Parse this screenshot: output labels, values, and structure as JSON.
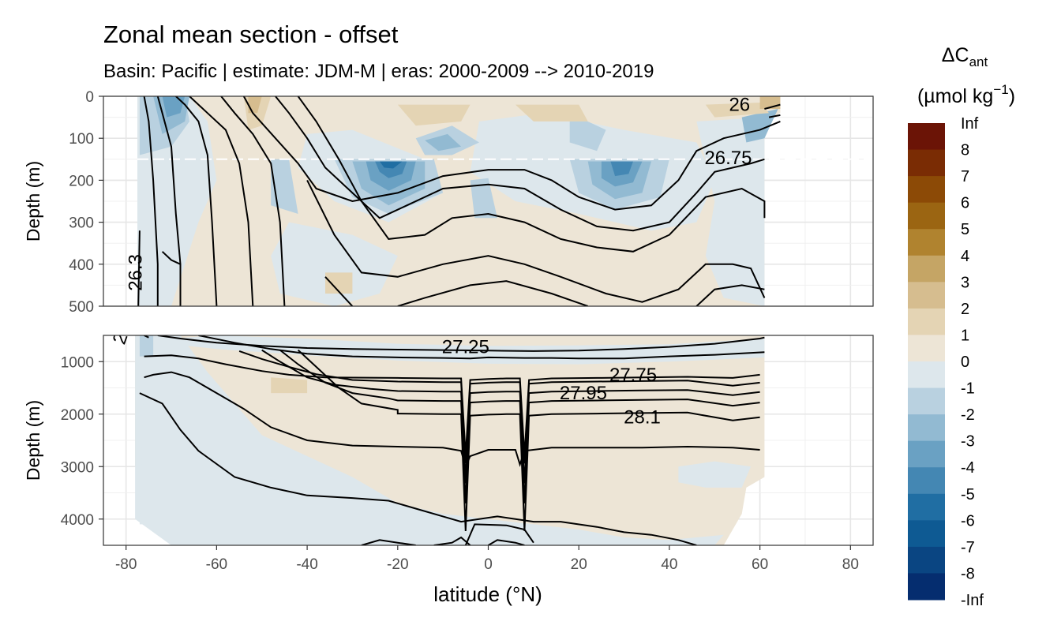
{
  "chart_data": {
    "type": "heatmap",
    "title": "Zonal mean section - offset",
    "subtitle": "Basin: Pacific | estimate: JDM-M | eras: 2000-2009 --> 2010-2019",
    "xlabel": "latitude (°N)",
    "xlim": [
      -85,
      85
    ],
    "x_ticks": [
      "-80",
      "-60",
      "-40",
      "-20",
      "0",
      "20",
      "40",
      "60",
      "80"
    ],
    "legend": {
      "title_main": "ΔC",
      "title_sub": "ant",
      "title_unit_pre": "(µmol kg",
      "title_unit_sup": "−1",
      "title_unit_post": ")",
      "placement": "right",
      "breaks": [
        "Inf",
        "8",
        "7",
        "6",
        "5",
        "4",
        "3",
        "2",
        "1",
        "0",
        "-1",
        "-2",
        "-3",
        "-4",
        "-5",
        "-6",
        "-7",
        "-8",
        "-Inf"
      ],
      "colors": [
        "#6b1406",
        "#7a2c04",
        "#8c4a06",
        "#9b6512",
        "#b0832f",
        "#c5a565",
        "#d6bd8f",
        "#e4d4b4",
        "#ede5d6",
        "#dde7ec",
        "#b9d1e0",
        "#92bad2",
        "#6aa1c3",
        "#4487b3",
        "#206ea3",
        "#0e5a93",
        "#0a4582",
        "#052d6f",
        "#031a5c"
      ]
    },
    "panels": [
      {
        "name": "upper",
        "ylabel": "Depth (m)",
        "ylim": [
          0,
          500
        ],
        "y_ticks": [
          "0",
          "100",
          "200",
          "300",
          "400",
          "500"
        ],
        "reference_line_depth": 150,
        "contour_labels": [
          "26",
          "26.75",
          "26.3"
        ]
      },
      {
        "name": "lower",
        "ylabel": "Depth (m)",
        "ylim": [
          500,
          4500
        ],
        "y_ticks": [
          "1000",
          "2000",
          "3000",
          "4000"
        ],
        "contour_labels": [
          "27.25",
          "27.75",
          "27.95",
          "28.1",
          "2"
        ]
      }
    ],
    "colors": {
      "positive_fill": "#ede5d6",
      "negative_fill": "#dde7ec",
      "contour": "#000000",
      "reference_line": "#ffffff"
    }
  }
}
